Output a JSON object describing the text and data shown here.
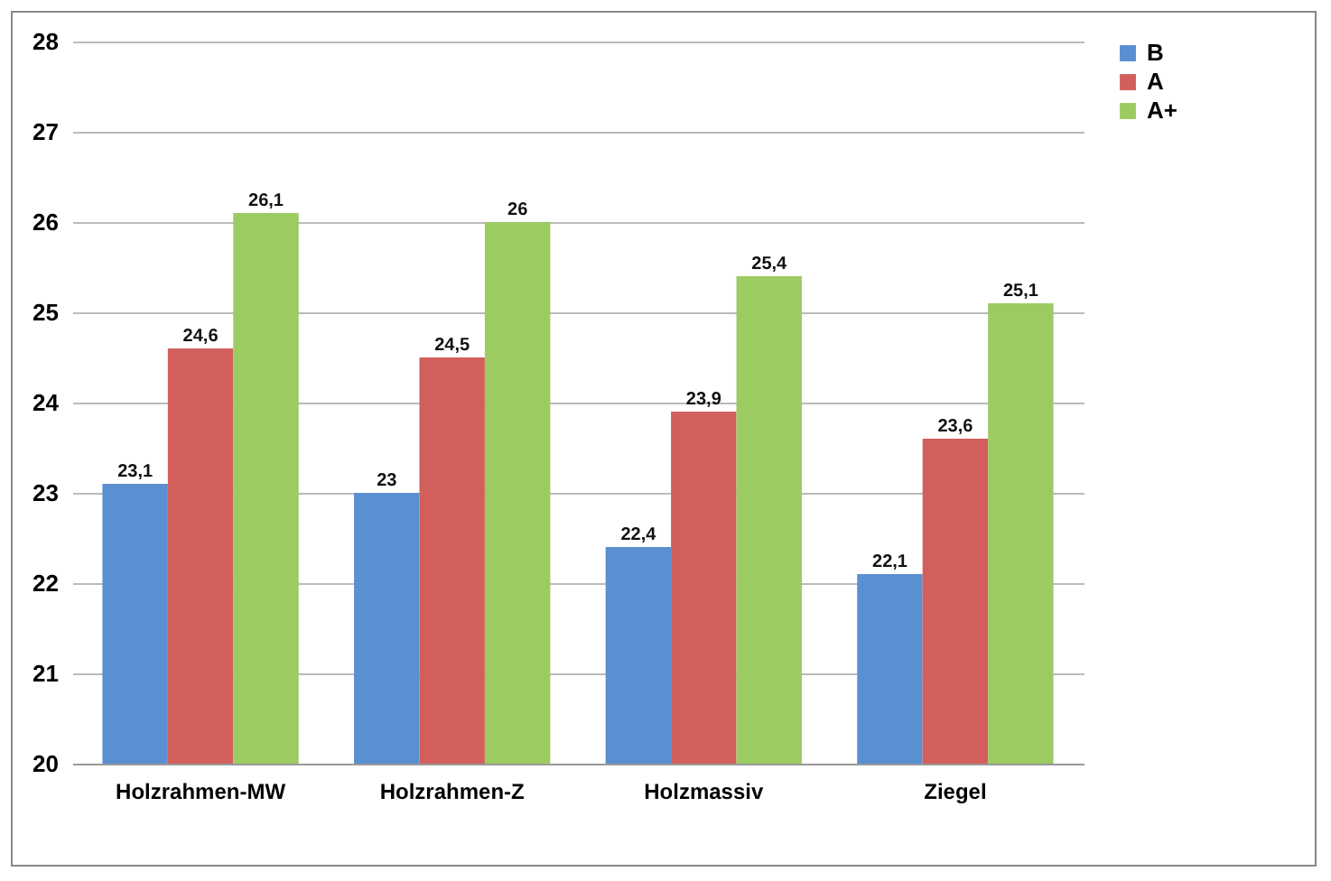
{
  "chart_data": {
    "type": "bar",
    "categories": [
      "Holzrahmen-MW",
      "Holzrahmen-Z",
      "Holzmassiv",
      "Ziegel"
    ],
    "series": [
      {
        "name": "B",
        "color": "#5a8fd1",
        "values": [
          23.1,
          23,
          22.4,
          22.1
        ],
        "value_labels": [
          "23,1",
          "23",
          "22,4",
          "22,1"
        ]
      },
      {
        "name": "A",
        "color": "#d25f5c",
        "values": [
          24.6,
          24.5,
          23.9,
          23.6
        ],
        "value_labels": [
          "24,6",
          "24,5",
          "23,9",
          "23,6"
        ]
      },
      {
        "name": "A+",
        "color": "#9ccb62",
        "values": [
          26.1,
          26,
          25.4,
          25.1
        ],
        "value_labels": [
          "26,1",
          "26",
          "25,4",
          "25,1"
        ]
      }
    ],
    "ylim": [
      20,
      28
    ],
    "yticks": [
      20,
      21,
      22,
      23,
      24,
      25,
      26,
      27,
      28
    ],
    "grid": "y",
    "legend": "right"
  }
}
